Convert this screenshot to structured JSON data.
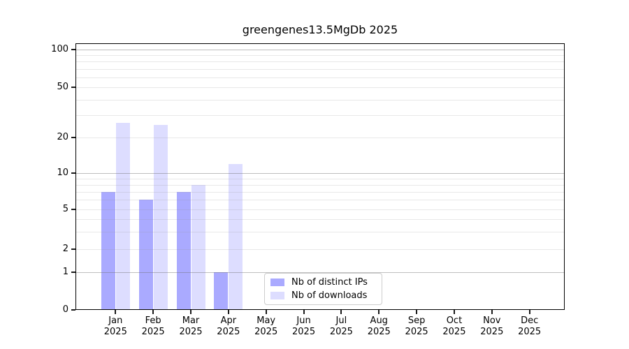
{
  "chart_data": {
    "type": "bar",
    "title": "greengenes13.5MgDb 2025",
    "categories": [
      "Jan",
      "Feb",
      "Mar",
      "Apr",
      "May",
      "Jun",
      "Jul",
      "Aug",
      "Sep",
      "Oct",
      "Nov",
      "Dec"
    ],
    "x_tick_year": "2025",
    "series": [
      {
        "name": "Nb of distinct IPs",
        "color": "#aaaaff",
        "values": [
          7,
          6,
          7,
          1,
          0,
          0,
          0,
          0,
          0,
          0,
          0,
          0
        ]
      },
      {
        "name": "Nb of downloads",
        "color": "#ddddff",
        "values": [
          26,
          25,
          8,
          12,
          0,
          0,
          0,
          0,
          0,
          0,
          0,
          0
        ]
      }
    ],
    "y_axis": {
      "scale": "symlog",
      "tick_labels": [
        0,
        1,
        2,
        5,
        10,
        20,
        50,
        100
      ],
      "major_gridlines": [
        1,
        10,
        100
      ],
      "minor_gridlines": [
        2,
        3,
        4,
        5,
        6,
        7,
        8,
        9,
        20,
        30,
        40,
        50,
        60,
        70,
        80,
        90
      ],
      "ylim": [
        0,
        110
      ]
    },
    "legend": {
      "position": "lower center"
    },
    "grid": true
  },
  "colors": {
    "background": "#ffffff",
    "spine": "#000000",
    "major_grid": "#b9b9b9",
    "minor_grid": "#e7e7e7",
    "legend_border": "#cccccc",
    "text": "#000000"
  }
}
